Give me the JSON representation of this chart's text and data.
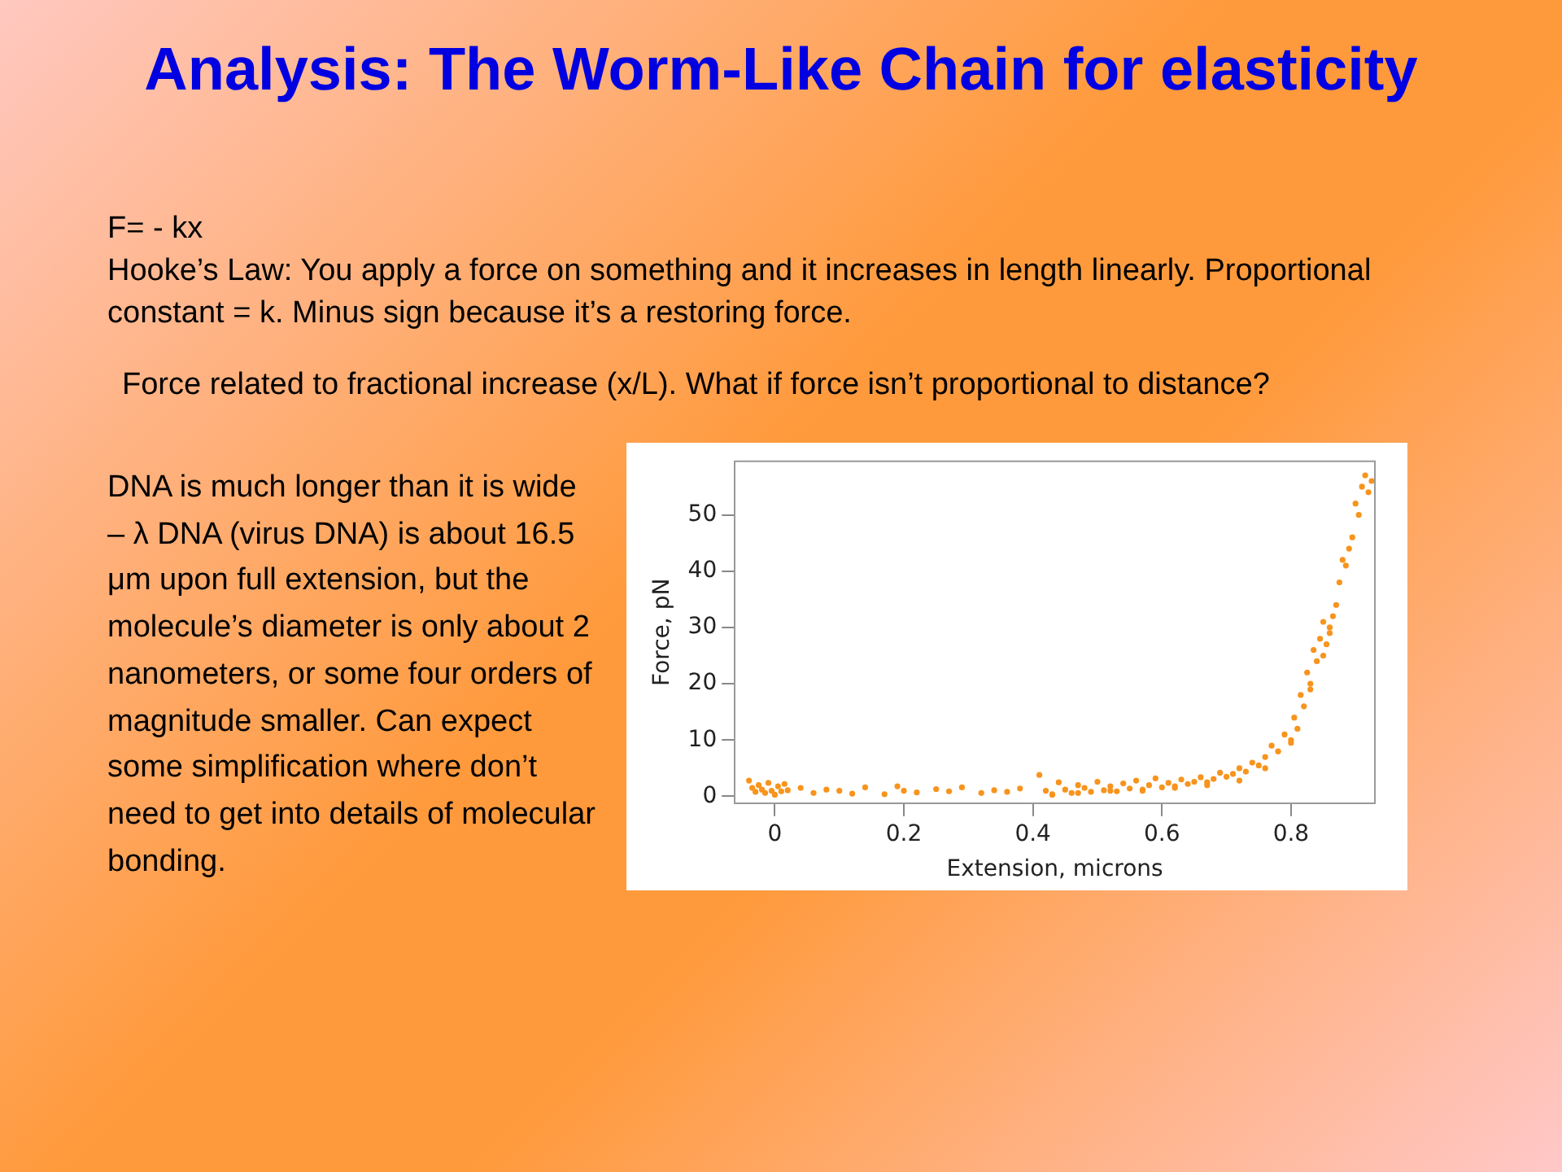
{
  "chart_data": {
    "type": "scatter",
    "title": "Analysis: The Worm-Like Chain for elasticity",
    "annotations": [
      "F= - kx",
      "Hooke’s Law: You apply a force on something and it increases in length linearly. Proportional constant = k. Minus sign because it’s a restoring force.",
      "Force related to fractional increase (x/L). What if force isn’t proportional to distance?",
      "DNA is much longer than it is wide – λ DNA (virus DNA) is about 16.5 μm upon full extension, but the molecule’s diameter is only about 2 nanometers, or some four orders of magnitude smaller. Can expect some simplification where don’t need to get into details of molecular bonding."
    ],
    "xlabel": "Extension, microns",
    "ylabel": "Force, pN",
    "xlim": [
      -0.062,
      0.93
    ],
    "ylim": [
      -1.2,
      59.5
    ],
    "xticks": [
      0,
      0.2,
      0.4,
      0.6,
      0.8
    ],
    "yticks": [
      0,
      10,
      20,
      30,
      40,
      50
    ],
    "grid": false,
    "legend": false,
    "marker": "circle",
    "series": [
      {
        "color": "#f7941d",
        "x": [
          -0.04,
          -0.035,
          -0.03,
          -0.025,
          -0.02,
          -0.015,
          -0.01,
          -0.005,
          0,
          0.005,
          0.01,
          0.015,
          0.02,
          0.04,
          0.06,
          0.08,
          0.1,
          0.12,
          0.14,
          0.17,
          0.19,
          0.2,
          0.22,
          0.25,
          0.27,
          0.29,
          0.32,
          0.34,
          0.36,
          0.38,
          0.41,
          0.42,
          0.43,
          0.44,
          0.45,
          0.46,
          0.47,
          0.48,
          0.49,
          0.5,
          0.51,
          0.52,
          0.53,
          0.54,
          0.55,
          0.56,
          0.57,
          0.58,
          0.59,
          0.6,
          0.61,
          0.62,
          0.63,
          0.64,
          0.65,
          0.66,
          0.67,
          0.68,
          0.69,
          0.7,
          0.71,
          0.72,
          0.73,
          0.74,
          0.75,
          0.76,
          0.77,
          0.78,
          0.79,
          0.8,
          0.805,
          0.81,
          0.815,
          0.82,
          0.825,
          0.83,
          0.835,
          0.84,
          0.845,
          0.85,
          0.855,
          0.86,
          0.865,
          0.87,
          0.875,
          0.88,
          0.885,
          0.89,
          0.895,
          0.9,
          0.905,
          0.91,
          0.915,
          0.92,
          0.925,
          0.43,
          0.47,
          0.52,
          0.57,
          0.62,
          0.67,
          0.72,
          0.76,
          0.8,
          0.83,
          0.85,
          0.86
        ],
        "values": [
          2.8,
          1.5,
          0.8,
          2.0,
          1.2,
          0.6,
          2.4,
          1.0,
          0.3,
          1.8,
          0.9,
          2.2,
          1.1,
          1.5,
          0.6,
          1.2,
          1.0,
          0.5,
          1.6,
          0.4,
          1.8,
          1.0,
          0.7,
          1.3,
          0.9,
          1.6,
          0.6,
          1.1,
          0.8,
          1.4,
          3.8,
          1.0,
          0.4,
          2.5,
          1.2,
          0.6,
          2.0,
          1.5,
          0.8,
          2.6,
          1.1,
          1.8,
          0.9,
          2.3,
          1.4,
          2.8,
          1.0,
          2.0,
          3.2,
          1.6,
          2.4,
          1.8,
          3.0,
          2.2,
          2.6,
          3.4,
          2.5,
          3.1,
          4.2,
          3.5,
          4.0,
          5.0,
          4.4,
          6.0,
          5.5,
          7.0,
          9.0,
          8.0,
          11.0,
          9.5,
          14.0,
          12.0,
          18.0,
          16.0,
          22.0,
          19.0,
          26.0,
          24.0,
          28.0,
          31.0,
          27.0,
          30.0,
          32.0,
          34.0,
          38.0,
          42.0,
          41.0,
          44.0,
          46.0,
          52.0,
          50.0,
          55.0,
          57.0,
          54.0,
          56.0,
          0.3,
          0.6,
          1.0,
          1.2,
          1.5,
          2.0,
          2.8,
          5.0,
          10.0,
          20.0,
          25.0,
          29.0
        ]
      }
    ]
  }
}
